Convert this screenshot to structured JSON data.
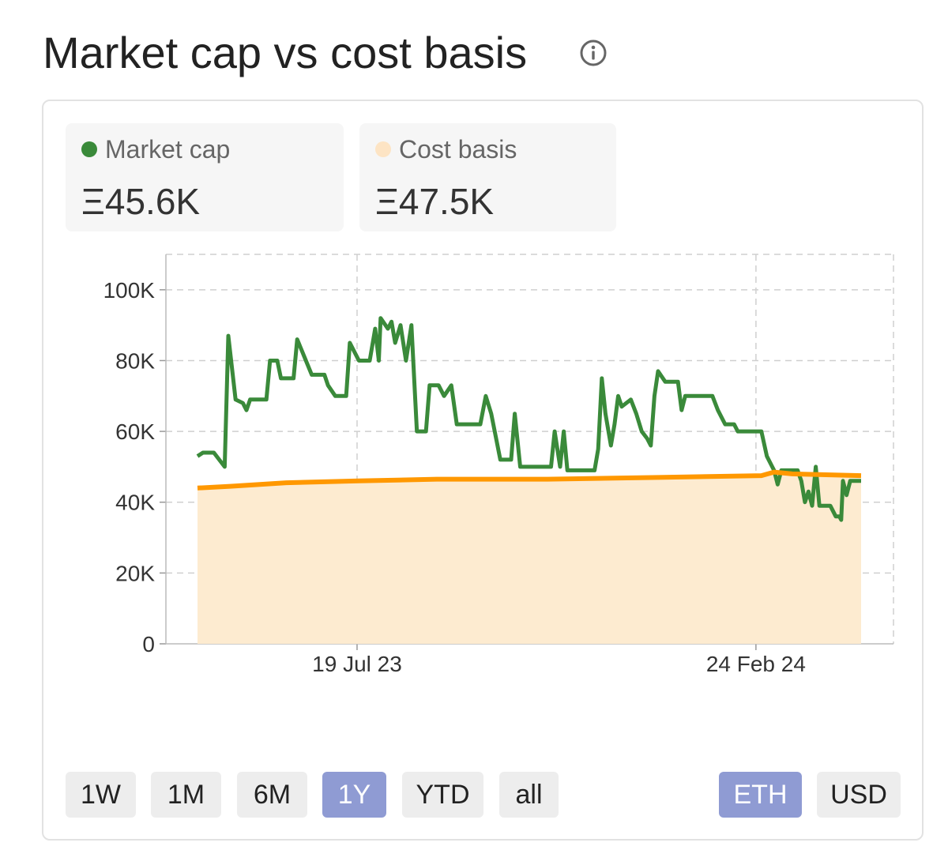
{
  "title": "Market cap vs cost basis",
  "icons": {
    "info": "info-icon"
  },
  "stats": {
    "market_cap": {
      "label": "Market cap",
      "value": "Ξ45.6K",
      "color": "#3a8a3a"
    },
    "cost_basis": {
      "label": "Cost basis",
      "value": "Ξ47.5K",
      "color": "#fde4c4"
    }
  },
  "range_buttons": [
    {
      "label": "1W",
      "active": false
    },
    {
      "label": "1M",
      "active": false
    },
    {
      "label": "6M",
      "active": false
    },
    {
      "label": "1Y",
      "active": true
    },
    {
      "label": "YTD",
      "active": false
    },
    {
      "label": "all",
      "active": false
    }
  ],
  "currency_buttons": [
    {
      "label": "ETH",
      "active": true
    },
    {
      "label": "USD",
      "active": false
    }
  ],
  "chart_data": {
    "type": "line",
    "title": "",
    "xlabel": "",
    "ylabel": "",
    "ylim": [
      0,
      110000
    ],
    "x_range": [
      "2023-04-22",
      "2024-04-22"
    ],
    "yticks": [
      0,
      20000,
      40000,
      60000,
      80000,
      100000
    ],
    "ytick_labels": [
      "0",
      "20K",
      "40K",
      "60K",
      "80K",
      "100K"
    ],
    "xticks": [
      "2023-07-19",
      "2024-02-24"
    ],
    "xtick_labels": [
      "19 Jul 23",
      "24 Feb 24"
    ],
    "grid": true,
    "series": [
      {
        "name": "Market cap",
        "color": "#3a8a3a",
        "style": "step-line",
        "points": [
          [
            "2023-04-22",
            53000
          ],
          [
            "2023-04-25",
            54000
          ],
          [
            "2023-05-01",
            54000
          ],
          [
            "2023-05-07",
            50000
          ],
          [
            "2023-05-09",
            87000
          ],
          [
            "2023-05-13",
            69000
          ],
          [
            "2023-05-17",
            68000
          ],
          [
            "2023-05-19",
            66000
          ],
          [
            "2023-05-21",
            69000
          ],
          [
            "2023-05-30",
            69000
          ],
          [
            "2023-06-01",
            80000
          ],
          [
            "2023-06-05",
            80000
          ],
          [
            "2023-06-07",
            75000
          ],
          [
            "2023-06-14",
            75000
          ],
          [
            "2023-06-16",
            86000
          ],
          [
            "2023-06-20",
            81000
          ],
          [
            "2023-06-24",
            76000
          ],
          [
            "2023-07-01",
            76000
          ],
          [
            "2023-07-03",
            73000
          ],
          [
            "2023-07-07",
            70000
          ],
          [
            "2023-07-13",
            70000
          ],
          [
            "2023-07-15",
            85000
          ],
          [
            "2023-07-20",
            80000
          ],
          [
            "2023-07-26",
            80000
          ],
          [
            "2023-07-29",
            89000
          ],
          [
            "2023-07-31",
            80000
          ],
          [
            "2023-08-01",
            92000
          ],
          [
            "2023-08-05",
            89000
          ],
          [
            "2023-08-07",
            91000
          ],
          [
            "2023-08-09",
            85000
          ],
          [
            "2023-08-12",
            90000
          ],
          [
            "2023-08-15",
            80000
          ],
          [
            "2023-08-18",
            90000
          ],
          [
            "2023-08-21",
            60000
          ],
          [
            "2023-08-26",
            60000
          ],
          [
            "2023-08-28",
            73000
          ],
          [
            "2023-09-02",
            73000
          ],
          [
            "2023-09-05",
            70000
          ],
          [
            "2023-09-09",
            73000
          ],
          [
            "2023-09-12",
            62000
          ],
          [
            "2023-09-25",
            62000
          ],
          [
            "2023-09-28",
            70000
          ],
          [
            "2023-10-01",
            65000
          ],
          [
            "2023-10-06",
            52000
          ],
          [
            "2023-10-12",
            52000
          ],
          [
            "2023-10-14",
            65000
          ],
          [
            "2023-10-17",
            50000
          ],
          [
            "2023-11-03",
            50000
          ],
          [
            "2023-11-05",
            60000
          ],
          [
            "2023-11-08",
            50000
          ],
          [
            "2023-11-10",
            60000
          ],
          [
            "2023-11-12",
            49000
          ],
          [
            "2023-11-27",
            49000
          ],
          [
            "2023-11-29",
            55000
          ],
          [
            "2023-12-01",
            75000
          ],
          [
            "2023-12-03",
            65000
          ],
          [
            "2023-12-06",
            56000
          ],
          [
            "2023-12-08",
            62000
          ],
          [
            "2023-12-10",
            70000
          ],
          [
            "2023-12-12",
            67000
          ],
          [
            "2023-12-17",
            69000
          ],
          [
            "2023-12-20",
            65000
          ],
          [
            "2023-12-23",
            60000
          ],
          [
            "2023-12-26",
            58000
          ],
          [
            "2023-12-28",
            56000
          ],
          [
            "2023-12-30",
            70000
          ],
          [
            "2024-01-01",
            77000
          ],
          [
            "2024-01-05",
            74000
          ],
          [
            "2024-01-12",
            74000
          ],
          [
            "2024-01-14",
            66000
          ],
          [
            "2024-01-16",
            70000
          ],
          [
            "2024-01-31",
            70000
          ],
          [
            "2024-02-03",
            66000
          ],
          [
            "2024-02-07",
            62000
          ],
          [
            "2024-02-12",
            62000
          ],
          [
            "2024-02-14",
            60000
          ],
          [
            "2024-02-27",
            60000
          ],
          [
            "2024-03-01",
            53000
          ],
          [
            "2024-03-05",
            49000
          ],
          [
            "2024-03-07",
            45000
          ],
          [
            "2024-03-09",
            49000
          ],
          [
            "2024-03-18",
            49000
          ],
          [
            "2024-03-20",
            46000
          ],
          [
            "2024-03-22",
            40000
          ],
          [
            "2024-03-24",
            43000
          ],
          [
            "2024-03-26",
            39000
          ],
          [
            "2024-03-28",
            50000
          ],
          [
            "2024-03-30",
            39000
          ],
          [
            "2024-04-05",
            39000
          ],
          [
            "2024-04-08",
            36000
          ],
          [
            "2024-04-10",
            36000
          ],
          [
            "2024-04-11",
            35000
          ],
          [
            "2024-04-12",
            46000
          ],
          [
            "2024-04-14",
            42000
          ],
          [
            "2024-04-16",
            46000
          ],
          [
            "2024-04-22",
            46000
          ]
        ]
      },
      {
        "name": "Cost basis",
        "color": "#ff9800",
        "fill_color": "#fdebd0",
        "style": "area-line",
        "points": [
          [
            "2023-04-22",
            44000
          ],
          [
            "2023-05-10",
            44500
          ],
          [
            "2023-06-10",
            45500
          ],
          [
            "2023-07-20",
            46000
          ],
          [
            "2023-09-01",
            46500
          ],
          [
            "2023-11-01",
            46500
          ],
          [
            "2024-01-01",
            47000
          ],
          [
            "2024-02-27",
            47500
          ],
          [
            "2024-03-05",
            48500
          ],
          [
            "2024-03-15",
            48000
          ],
          [
            "2024-04-22",
            47500
          ]
        ]
      }
    ]
  }
}
